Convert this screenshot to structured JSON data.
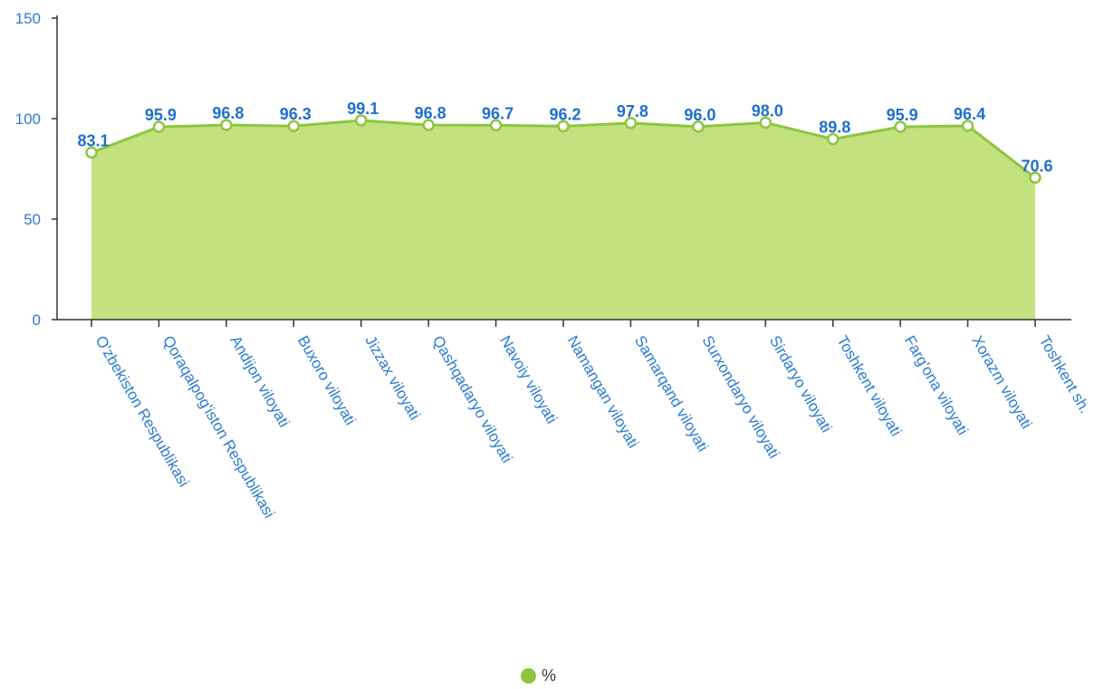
{
  "chart_data": {
    "type": "area",
    "categories": [
      "O'zbekiston Respublikasi",
      "Qoraqalpog'iston Respublikasi",
      "Andijon viloyati",
      "Buxoro viloyati",
      "Jizzax viloyati",
      "Qashqadaryo viloyati",
      "Navoiy viloyati",
      "Namangan viloyati",
      "Samarqand viloyati",
      "Surxondaryo viloyati",
      "Sirdaryo viloyati",
      "Toshkent viloyati",
      "Farg'ona viloyati",
      "Xorazm viloyati",
      "Toshkent sh."
    ],
    "series": [
      {
        "name": "%",
        "values": [
          83.1,
          95.9,
          96.8,
          96.3,
          99.1,
          96.8,
          96.7,
          96.2,
          97.8,
          96.0,
          98.0,
          89.8,
          95.9,
          96.4,
          70.6
        ],
        "labels": [
          "83.1",
          "95.9",
          "96.8",
          "96.3",
          "99.1",
          "96.8",
          "96.7",
          "96.2",
          "97.8",
          "96.0",
          "98.0",
          "89.8",
          "95.9",
          "96.4",
          "70.6"
        ]
      }
    ],
    "ylim": [
      0,
      150
    ],
    "yticks": [
      0,
      50,
      100,
      150
    ],
    "grid": false,
    "legend_position": "bottom-center",
    "colors": {
      "area_fill": "#c3e17f",
      "line": "#8cc63f",
      "marker_fill": "#ffffff",
      "marker_stroke": "#8cc63f",
      "data_label": "#1f6fd1",
      "axis": "#333333",
      "tick_label": "#2b7bd5",
      "category_label": "#2b7bd5",
      "legend_marker": "#8cc63f"
    }
  },
  "legend": {
    "label": "%"
  }
}
